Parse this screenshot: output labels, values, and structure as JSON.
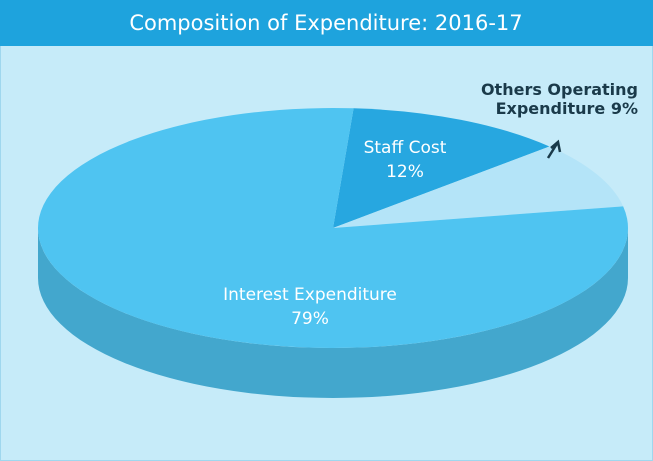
{
  "chart_data": {
    "type": "pie",
    "title": "Composition of Expenditure: 2016-17",
    "categories": [
      "Staff Cost",
      "Others Operating Expenditure",
      "Interest Expenditure"
    ],
    "values": [
      12,
      9,
      79
    ],
    "value_labels": [
      "12%",
      "9%",
      "79%"
    ],
    "colors": [
      "#27a7e0",
      "#b4e4f8",
      "#4fc4f1"
    ]
  }
}
